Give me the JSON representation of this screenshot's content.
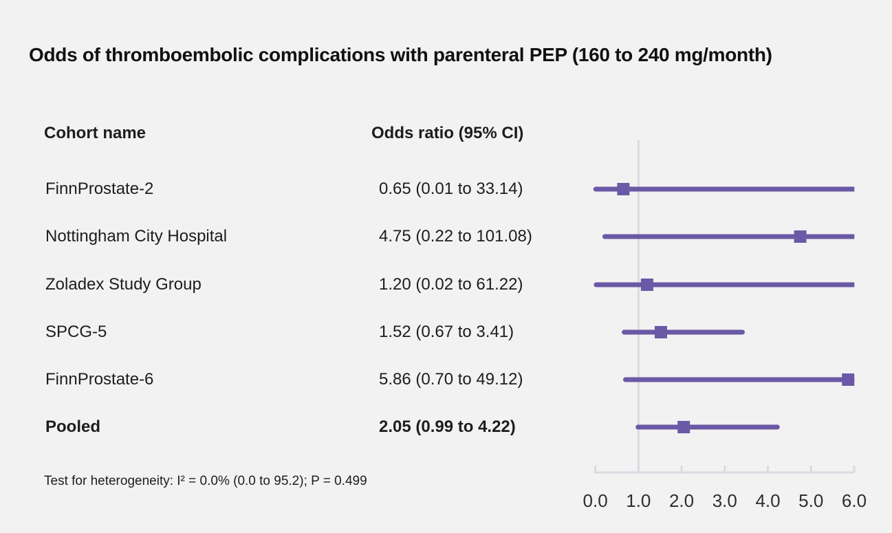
{
  "title": "Odds of thromboembolic complications with parenteral PEP (160 to 240 mg/month)",
  "table": {
    "col1_header": "Cohort name",
    "col2_header": "Odds ratio (95% CI)"
  },
  "footnote": "Test for heterogeneity: I² = 0.0% (0.0 to 95.2); P = 0.499",
  "colors": {
    "accent_purple": "#6a59a6",
    "axis_gray": "#d7dbe2",
    "background": "#f2f2f2",
    "text": "#1d1d1d",
    "tick_label": "#2e2e2e"
  },
  "chart_data": {
    "type": "forest",
    "title": "Odds of thromboembolic complications with parenteral PEP (160 to 240 mg/month)",
    "xlabel": "",
    "xlim": [
      0,
      6
    ],
    "xticks": [
      "0.0",
      "1.0",
      "2.0",
      "3.0",
      "4.0",
      "5.0",
      "6.0"
    ],
    "reference_line_x": 1.0,
    "marker_shape": "square",
    "rows": [
      {
        "cohort": "FinnProstate-2",
        "or": 0.65,
        "ci_low": 0.01,
        "ci_high": 33.14,
        "label": "0.65 (0.01 to 33.14)",
        "pooled": false
      },
      {
        "cohort": "Nottingham City Hospital",
        "or": 4.75,
        "ci_low": 0.22,
        "ci_high": 101.08,
        "label": "4.75 (0.22 to 101.08)",
        "pooled": false
      },
      {
        "cohort": "Zoladex Study Group",
        "or": 1.2,
        "ci_low": 0.02,
        "ci_high": 61.22,
        "label": "1.20 (0.02 to 61.22)",
        "pooled": false
      },
      {
        "cohort": "SPCG-5",
        "or": 1.52,
        "ci_low": 0.67,
        "ci_high": 3.41,
        "label": "1.52 (0.67 to 3.41)",
        "pooled": false
      },
      {
        "cohort": "FinnProstate-6",
        "or": 5.86,
        "ci_low": 0.7,
        "ci_high": 49.12,
        "label": "5.86 (0.70 to 49.12)",
        "pooled": false
      },
      {
        "cohort": "Pooled",
        "or": 2.05,
        "ci_low": 0.99,
        "ci_high": 4.22,
        "label": "2.05 (0.99 to 4.22)",
        "pooled": true
      }
    ]
  }
}
